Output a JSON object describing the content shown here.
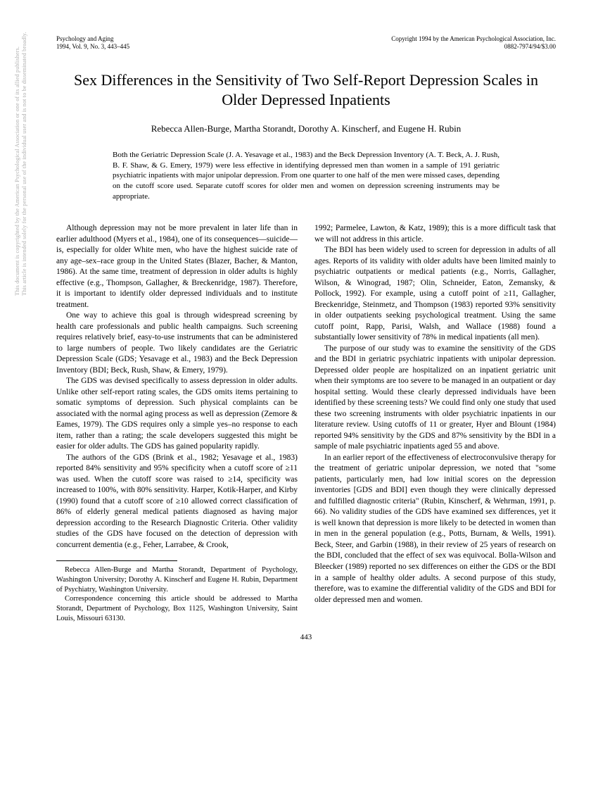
{
  "header": {
    "journal_line1": "Psychology and Aging",
    "journal_line2": "1994, Vol. 9, No. 3, 443–445",
    "copyright_line1": "Copyright 1994 by the American Psychological Association, Inc.",
    "copyright_line2": "0882-7974/94/$3.00"
  },
  "title": "Sex Differences in the Sensitivity of Two Self-Report Depression Scales in Older Depressed Inpatients",
  "authors": "Rebecca Allen-Burge, Martha Storandt, Dorothy A. Kinscherf, and Eugene H. Rubin",
  "abstract": "Both the Geriatric Depression Scale (J. A. Yesavage et al., 1983) and the Beck Depression Inventory (A. T. Beck, A. J. Rush, B. F. Shaw, & G. Emery, 1979) were less effective in identifying depressed men than women in a sample of 191 geriatric psychiatric inpatients with major unipolar depression. From one quarter to one half of the men were missed cases, depending on the cutoff score used. Separate cutoff scores for older men and women on depression screening instruments may be appropriate.",
  "left_column": {
    "p1": "Although depression may not be more prevalent in later life than in earlier adulthood (Myers et al., 1984), one of its consequences—suicide—is, especially for older White men, who have the highest suicide rate of any age–sex–race group in the United States (Blazer, Bacher, & Manton, 1986). At the same time, treatment of depression in older adults is highly effective (e.g., Thompson, Gallagher, & Breckenridge, 1987). Therefore, it is important to identify older depressed individuals and to institute treatment.",
    "p2": "One way to achieve this goal is through widespread screening by health care professionals and public health campaigns. Such screening requires relatively brief, easy-to-use instruments that can be administered to large numbers of people. Two likely candidates are the Geriatric Depression Scale (GDS; Yesavage et al., 1983) and the Beck Depression Inventory (BDI; Beck, Rush, Shaw, & Emery, 1979).",
    "p3": "The GDS was devised specifically to assess depression in older adults. Unlike other self-report rating scales, the GDS omits items pertaining to somatic symptoms of depression. Such physical complaints can be associated with the normal aging process as well as depression (Zemore & Eames, 1979). The GDS requires only a simple yes–no response to each item, rather than a rating; the scale developers suggested this might be easier for older adults. The GDS has gained popularity rapidly.",
    "p4": "The authors of the GDS (Brink et al., 1982; Yesavage et al., 1983) reported 84% sensitivity and 95% specificity when a cutoff score of ≥11 was used. When the cutoff score was raised to ≥14, specificity was increased to 100%, with 80% sensitivity. Harper, Kotik-Harper, and Kirby (1990) found that a cutoff score of ≥10 allowed correct classification of 86% of elderly general medical patients diagnosed as having major depression according to the Research Diagnostic Criteria. Other validity studies of the GDS have focused on the detection of depression with concurrent dementia (e.g., Feher, Larrabee, & Crook,"
  },
  "footnote": {
    "p1": "Rebecca Allen-Burge and Martha Storandt, Department of Psychology, Washington University; Dorothy A. Kinscherf and Eugene H. Rubin, Department of Psychiatry, Washington University.",
    "p2": "Correspondence concerning this article should be addressed to Martha Storandt, Department of Psychology, Box 1125, Washington University, Saint Louis, Missouri 63130."
  },
  "right_column": {
    "p1": "1992; Parmelee, Lawton, & Katz, 1989); this is a more difficult task that we will not address in this article.",
    "p2": "The BDI has been widely used to screen for depression in adults of all ages. Reports of its validity with older adults have been limited mainly to psychiatric outpatients or medical patients (e.g., Norris, Gallagher, Wilson, & Winograd, 1987; Olin, Schneider, Eaton, Zemansky, & Pollock, 1992). For example, using a cutoff point of ≥11, Gallagher, Breckenridge, Steinmetz, and Thompson (1983) reported 93% sensitivity in older outpatients seeking psychological treatment. Using the same cutoff point, Rapp, Parisi, Walsh, and Wallace (1988) found a substantially lower sensitivity of 78% in medical inpatients (all men).",
    "p3": "The purpose of our study was to examine the sensitivity of the GDS and the BDI in geriatric psychiatric inpatients with unipolar depression. Depressed older people are hospitalized on an inpatient geriatric unit when their symptoms are too severe to be managed in an outpatient or day hospital setting. Would these clearly depressed individuals have been identified by these screening tests? We could find only one study that used these two screening instruments with older psychiatric inpatients in our literature review. Using cutoffs of 11 or greater, Hyer and Blount (1984) reported 94% sensitivity by the GDS and 87% sensitivity by the BDI in a sample of male psychiatric inpatients aged 55 and above.",
    "p4": "In an earlier report of the effectiveness of electroconvulsive therapy for the treatment of geriatric unipolar depression, we noted that \"some patients, particularly men, had low initial scores on the depression inventories [GDS and BDI] even though they were clinically depressed and fulfilled diagnostic criteria\" (Rubin, Kinscherf, & Wehrman, 1991, p. 66). No validity studies of the GDS have examined sex differences, yet it is well known that depression is more likely to be detected in women than in men in the general population (e.g., Potts, Burnam, & Wells, 1991). Beck, Steer, and Garbin (1988), in their review of 25 years of research on the BDI, concluded that the effect of sex was equivocal. Bolla-Wilson and Bleecker (1989) reported no sex differences on either the GDS or the BDI in a sample of healthy older adults. A second purpose of this study, therefore, was to examine the differential validity of the GDS and BDI for older depressed men and women."
  },
  "page_number": "443",
  "side_text_line1": "This document is copyrighted by the American Psychological Association or one of its allied publishers.",
  "side_text_line2": "This article is intended solely for the personal use of the individual user and is not to be disseminated broadly."
}
